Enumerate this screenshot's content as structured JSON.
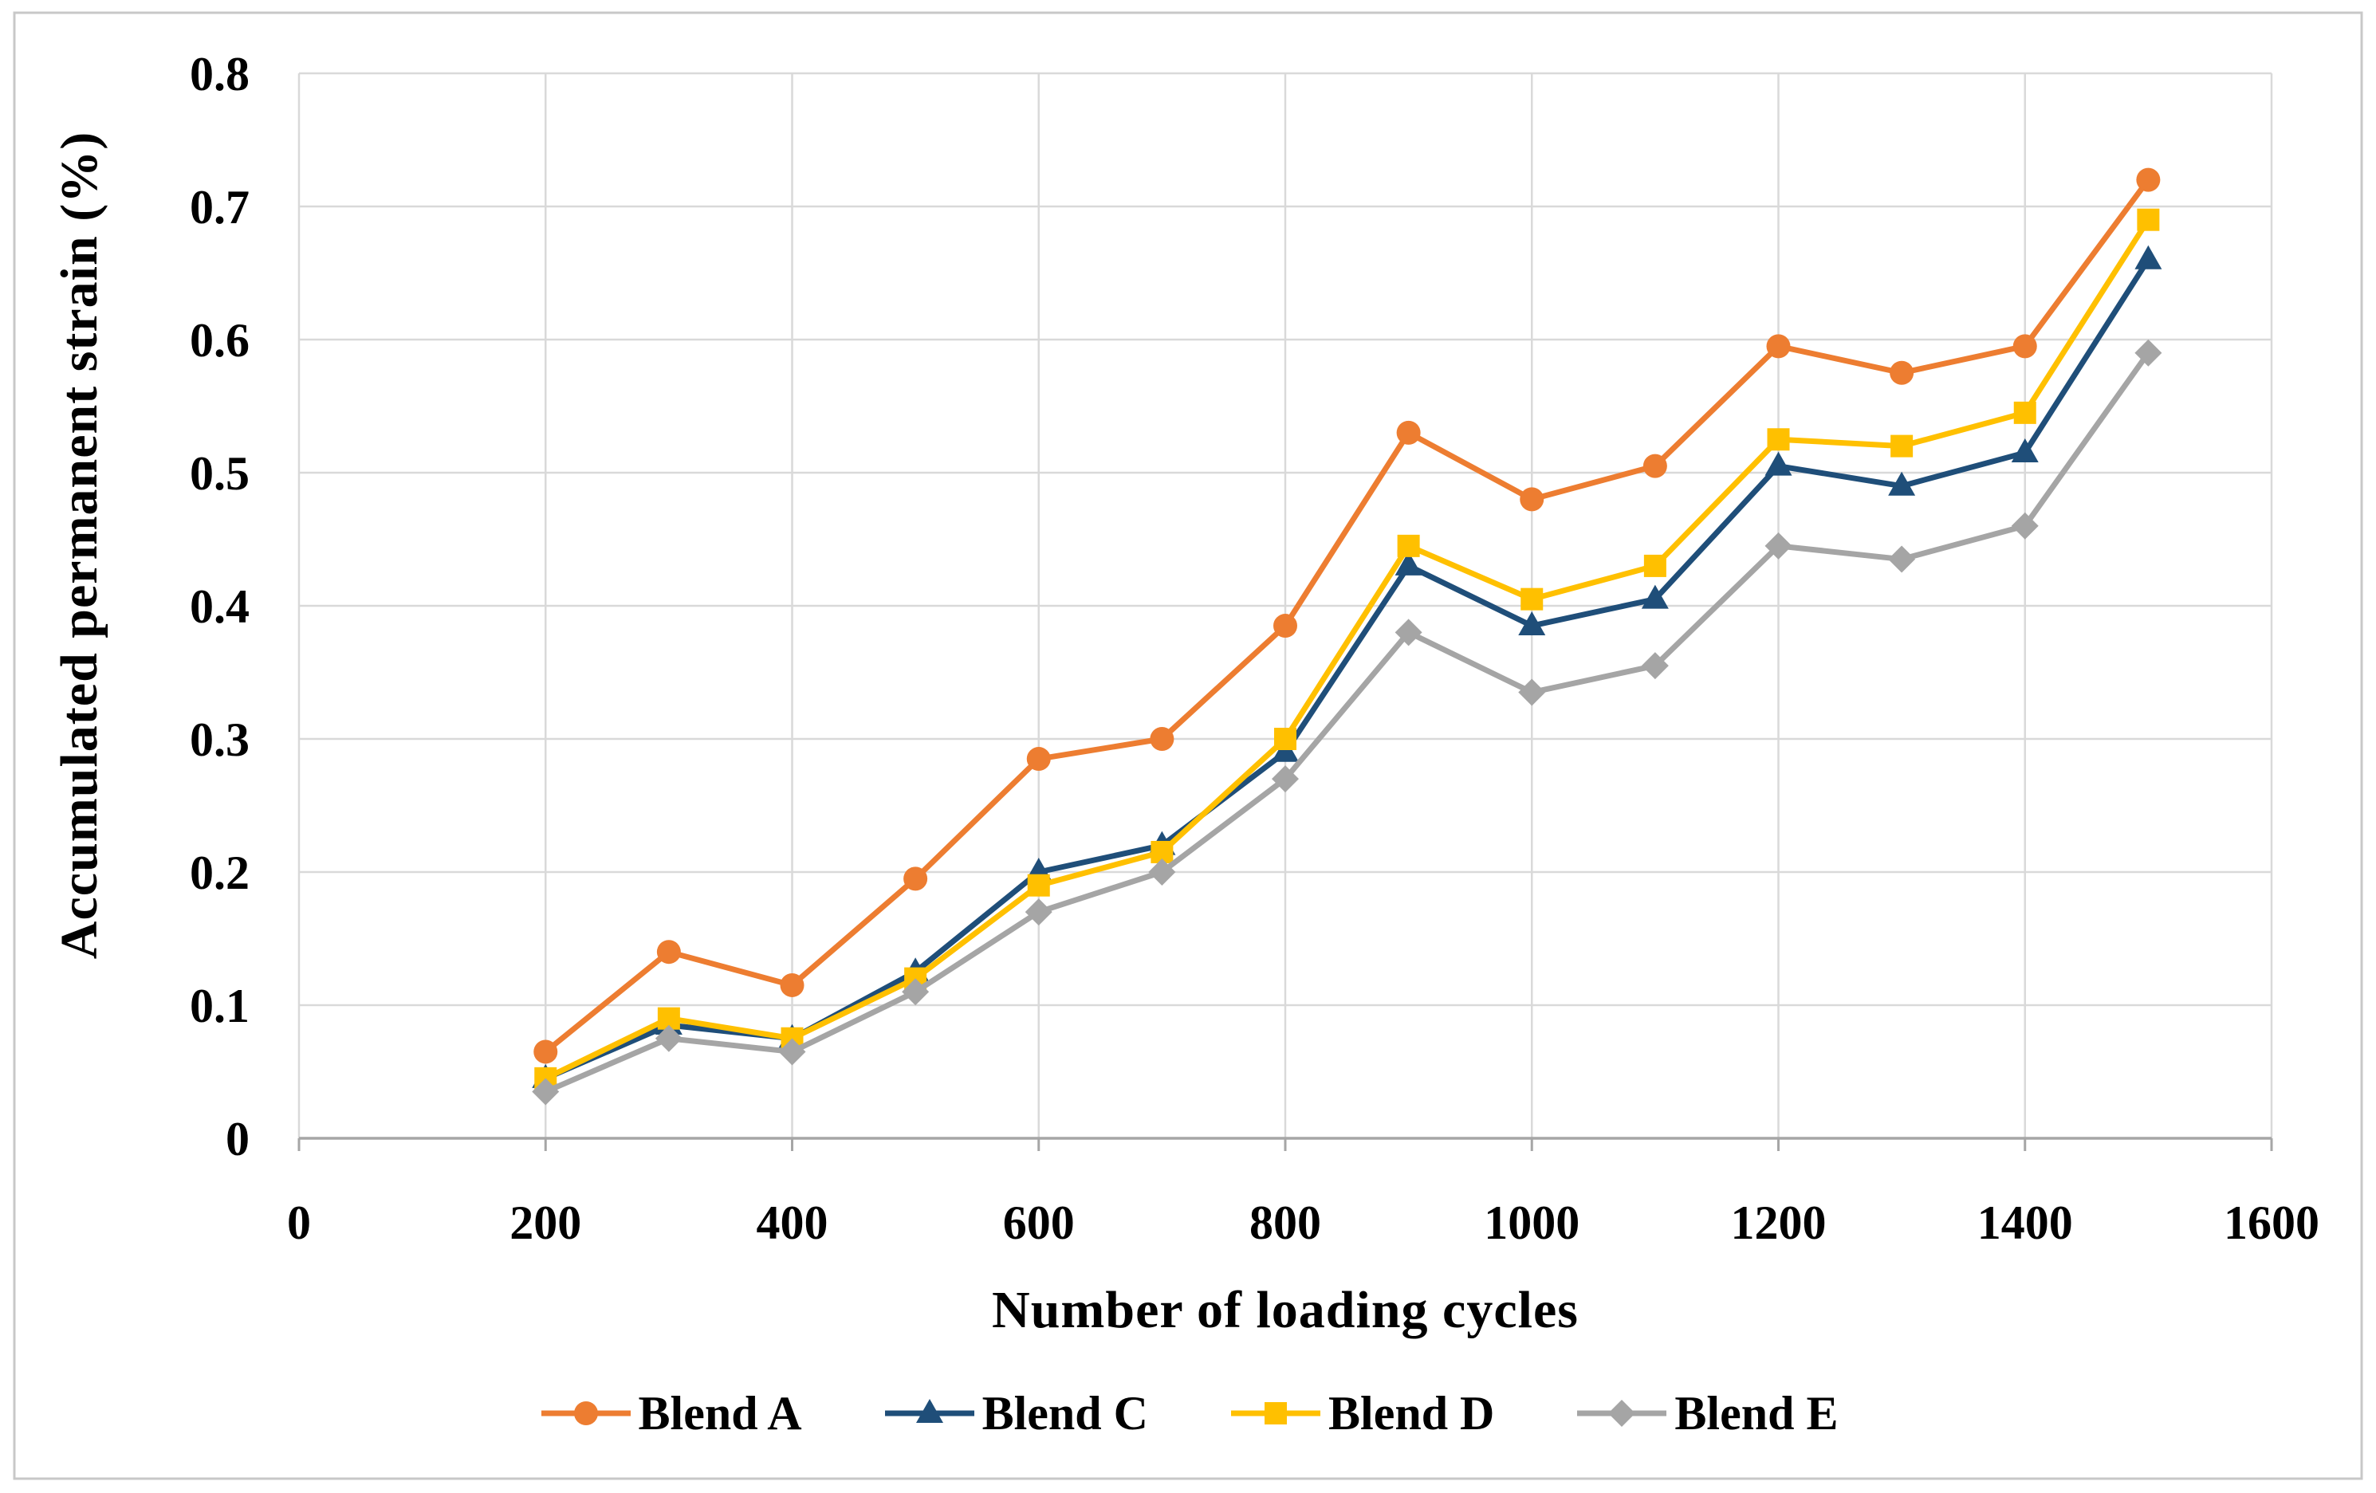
{
  "chart_data": {
    "type": "line",
    "title": "",
    "xlabel": "Number of loading cycles",
    "ylabel": "Accumulated permanent strain (%)",
    "x": [
      200,
      300,
      400,
      500,
      600,
      700,
      800,
      900,
      1000,
      1100,
      1200,
      1300,
      1400,
      1500
    ],
    "series": [
      {
        "name": "Blend A",
        "color": "#ED7D31",
        "marker": "circle",
        "values": [
          0.065,
          0.14,
          0.115,
          0.195,
          0.285,
          0.3,
          0.385,
          0.53,
          0.48,
          0.505,
          0.595,
          0.575,
          0.595,
          0.72
        ]
      },
      {
        "name": "Blend C",
        "color": "#1F4E79",
        "marker": "triangle",
        "values": [
          0.045,
          0.085,
          0.075,
          0.125,
          0.2,
          0.22,
          0.29,
          0.43,
          0.385,
          0.405,
          0.505,
          0.49,
          0.515,
          0.66
        ]
      },
      {
        "name": "Blend D",
        "color": "#FFC000",
        "marker": "square",
        "values": [
          0.045,
          0.09,
          0.075,
          0.12,
          0.19,
          0.215,
          0.3,
          0.445,
          0.405,
          0.43,
          0.525,
          0.52,
          0.545,
          0.69
        ]
      },
      {
        "name": "Blend E",
        "color": "#A5A5A5",
        "marker": "diamond",
        "values": [
          0.035,
          0.075,
          0.065,
          0.11,
          0.17,
          0.2,
          0.27,
          0.38,
          0.335,
          0.355,
          0.445,
          0.435,
          0.46,
          0.59
        ]
      }
    ],
    "xlim": [
      0,
      1600
    ],
    "ylim": [
      0,
      0.8
    ],
    "x_tick_values": [
      0,
      200,
      400,
      600,
      800,
      1000,
      1200,
      1400,
      1600
    ],
    "x_tick_labels": [
      "0",
      "200",
      "400",
      "600",
      "800",
      "1000",
      "1200",
      "1400",
      "1600"
    ],
    "y_tick_values": [
      0,
      0.1,
      0.2,
      0.3,
      0.4,
      0.5,
      0.6,
      0.7,
      0.8
    ],
    "y_tick_labels": [
      "0",
      "0.1",
      "0.2",
      "0.3",
      "0.4",
      "0.5",
      "0.6",
      "0.7",
      "0.8"
    ],
    "grid": true,
    "legend_position": "bottom"
  },
  "colors": {
    "background": "#FFFFFF",
    "gridline": "#D9D9D9",
    "axis_line": "#A6A6A6",
    "tick_mark": "#A6A6A6",
    "frame_border": "#C8C8C8",
    "text": "#000000"
  }
}
